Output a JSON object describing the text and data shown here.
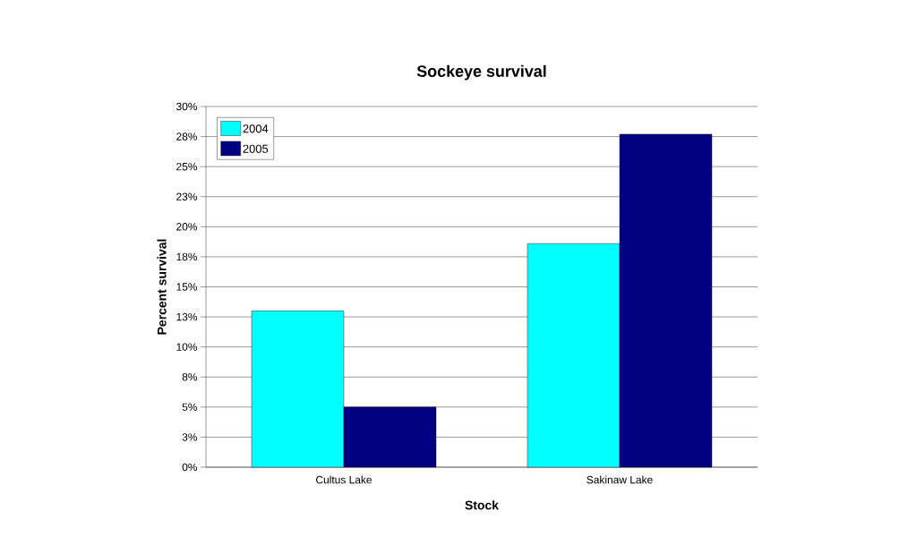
{
  "chart_data": {
    "type": "bar",
    "title": "Sockeye survival",
    "xlabel": "Stock",
    "ylabel": "Percent survival",
    "categories": [
      "Cultus Lake",
      "Sakinaw Lake"
    ],
    "series": [
      {
        "name": "2004",
        "color": "#00ffff",
        "values": [
          13.0,
          18.6
        ]
      },
      {
        "name": "2005",
        "color": "#000080",
        "values": [
          5.0,
          27.7
        ]
      }
    ],
    "ylim": [
      0,
      30
    ],
    "yticks": [
      {
        "value": 0,
        "label": "0%"
      },
      {
        "value": 2.5,
        "label": "3%"
      },
      {
        "value": 5,
        "label": "5%"
      },
      {
        "value": 7.5,
        "label": "8%"
      },
      {
        "value": 10,
        "label": "10%"
      },
      {
        "value": 12.5,
        "label": "13%"
      },
      {
        "value": 15,
        "label": "15%"
      },
      {
        "value": 17.5,
        "label": "18%"
      },
      {
        "value": 20,
        "label": "20%"
      },
      {
        "value": 22.5,
        "label": "23%"
      },
      {
        "value": 25,
        "label": "25%"
      },
      {
        "value": 27.5,
        "label": "28%"
      },
      {
        "value": 30,
        "label": "30%"
      }
    ],
    "grid": "y",
    "legend": "top left"
  }
}
